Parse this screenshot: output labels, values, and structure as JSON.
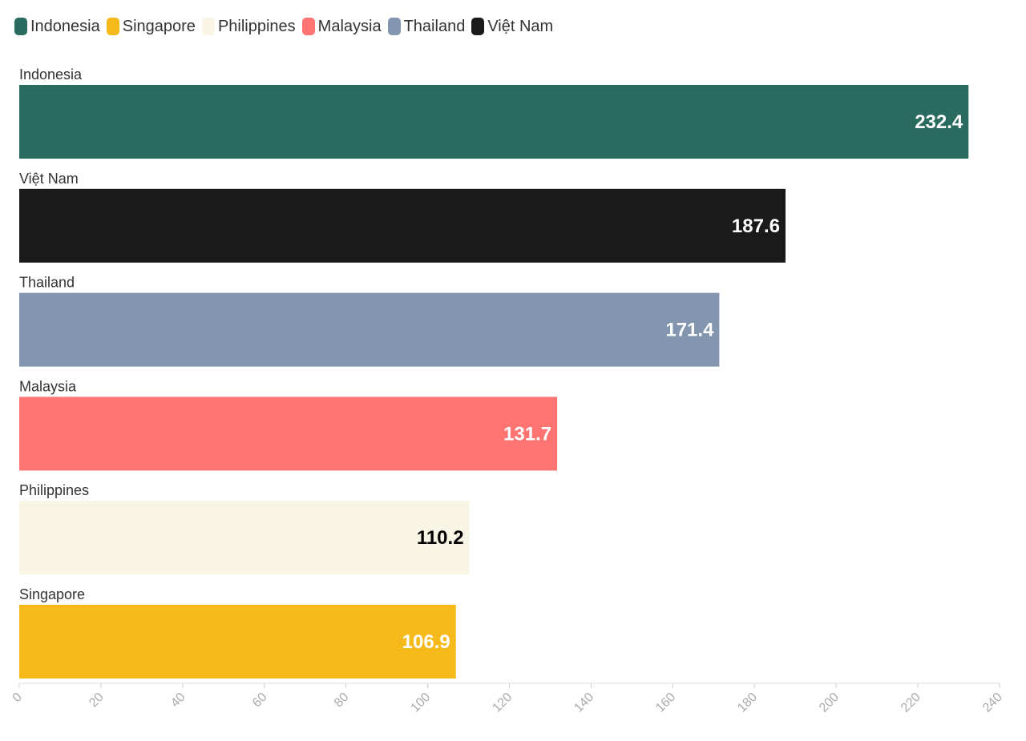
{
  "chart_data": {
    "type": "bar",
    "orientation": "horizontal",
    "categories": [
      "Indonesia",
      "Việt Nam",
      "Thailand",
      "Malaysia",
      "Philippines",
      "Singapore"
    ],
    "values": [
      232.4,
      187.6,
      171.4,
      131.7,
      110.2,
      106.9
    ],
    "value_labels": [
      "232.4",
      "187.6",
      "171.4",
      "131.7",
      "110.2",
      "106.9"
    ],
    "colors": {
      "Indonesia": "#2a6b5f",
      "Việt Nam": "#1a1a1a",
      "Thailand": "#8296b0",
      "Malaysia": "#ff7470",
      "Philippines": "#f8f5e4",
      "Singapore": "#f6b91a"
    },
    "label_colors": {
      "Indonesia": "#ffffff",
      "Việt Nam": "#ffffff",
      "Thailand": "#ffffff",
      "Malaysia": "#ffffff",
      "Philippines": "#000000",
      "Singapore": "#ffffff"
    },
    "legend": {
      "placement": "top-left",
      "entries": [
        "Indonesia",
        "Singapore",
        "Philippines",
        "Malaysia",
        "Thailand",
        "Việt Nam"
      ]
    },
    "xlim": [
      0,
      240
    ],
    "x_ticks": [
      "0",
      "20",
      "40",
      "60",
      "80",
      "100",
      "120",
      "140",
      "160",
      "180",
      "200",
      "220",
      "240"
    ],
    "title": "",
    "xlabel": "",
    "ylabel": "",
    "grid": false
  }
}
